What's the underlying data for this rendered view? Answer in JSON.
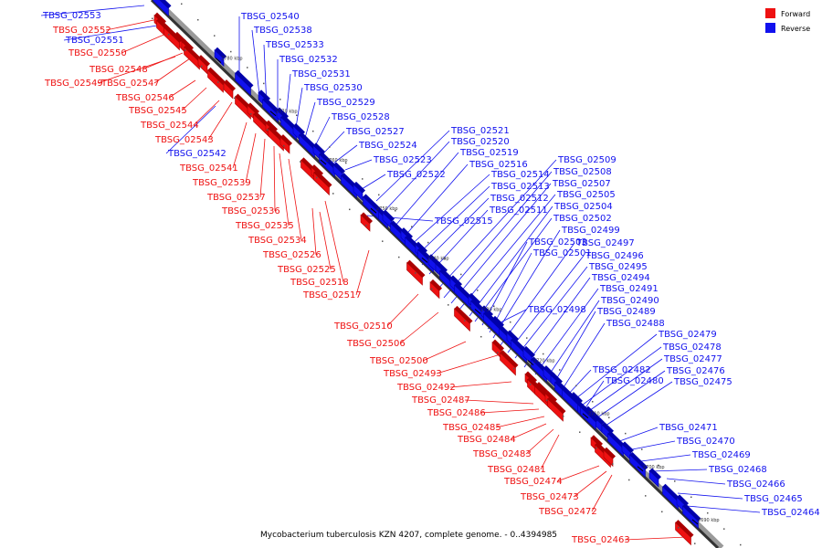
{
  "caption": "Mycobacterium tuberculosis KZN 4207, complete genome. - 0..4394985",
  "legend": [
    {
      "label": "Forward",
      "color": "#ee1111"
    },
    {
      "label": "Reverse",
      "color": "#1111ee"
    }
  ],
  "ticks": [
    "2780 kbp",
    "2770 kbp",
    "2760 kbp",
    "2750 kbp",
    "2740 kbp",
    "2730 kbp",
    "2720 kbp",
    "2710 kbp",
    "2700 kbp",
    "2690 kbp"
  ],
  "forward_genes": [
    "TBSG_02552",
    "TBSG_02550",
    "TBSG_02548",
    "TBSG_02549",
    "TBSG_02547",
    "TBSG_02546",
    "TBSG_02545",
    "TBSG_02544",
    "TBSG_02543",
    "TBSG_02541",
    "TBSG_02539",
    "TBSG_02537",
    "TBSG_02536",
    "TBSG_02535",
    "TBSG_02534",
    "TBSG_02526",
    "TBSG_02525",
    "TBSG_02518",
    "TBSG_02517",
    "TBSG_02510",
    "TBSG_02506",
    "TBSG_02500",
    "TBSG_02493",
    "TBSG_02492",
    "TBSG_02487",
    "TBSG_02486",
    "TBSG_02485",
    "TBSG_02484",
    "TBSG_02483",
    "TBSG_02481",
    "TBSG_02474",
    "TBSG_02473",
    "TBSG_02472",
    "TBSG_02463"
  ],
  "reverse_genes": [
    "TBSG_02553",
    "TBSG_02551",
    "TBSG_02542",
    "TBSG_02540",
    "TBSG_02538",
    "TBSG_02533",
    "TBSG_02532",
    "TBSG_02531",
    "TBSG_02530",
    "TBSG_02529",
    "TBSG_02528",
    "TBSG_02527",
    "TBSG_02524",
    "TBSG_02523",
    "TBSG_02522",
    "TBSG_02521",
    "TBSG_02520",
    "TBSG_02519",
    "TBSG_02516",
    "TBSG_02514",
    "TBSG_02513",
    "TBSG_02512",
    "TBSG_02511",
    "TBSG_02515",
    "TBSG_02509",
    "TBSG_02508",
    "TBSG_02507",
    "TBSG_02505",
    "TBSG_02504",
    "TBSG_02502",
    "TBSG_02503",
    "TBSG_02501",
    "TBSG_02499",
    "TBSG_02497",
    "TBSG_02496",
    "TBSG_02495",
    "TBSG_02494",
    "TBSG_02491",
    "TBSG_02490",
    "TBSG_02498",
    "TBSG_02489",
    "TBSG_02488",
    "TBSG_02479",
    "TBSG_02478",
    "TBSG_02477",
    "TBSG_02482",
    "TBSG_02476",
    "TBSG_02480",
    "TBSG_02475",
    "TBSG_02471",
    "TBSG_02470",
    "TBSG_02469",
    "TBSG_02468",
    "TBSG_02466",
    "TBSG_02465",
    "TBSG_02464"
  ]
}
